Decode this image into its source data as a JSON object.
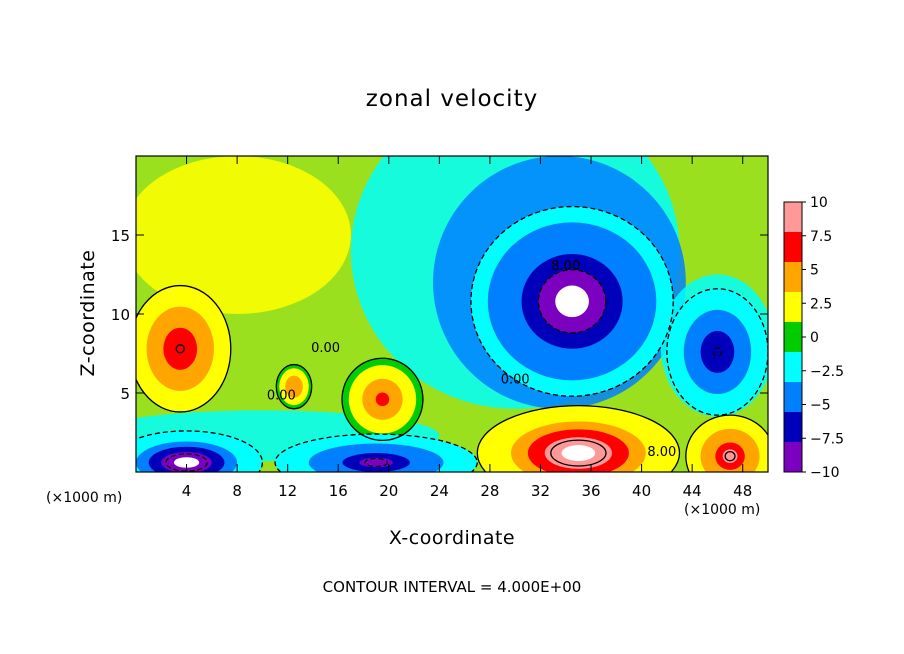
{
  "chart_data": {
    "type": "heatmap",
    "title": "zonal velocity",
    "xlabel": "X-coordinate",
    "ylabel": "Z-coordinate",
    "x_unit_label": "(×1000 m)",
    "footer": "CONTOUR INTERVAL = 4.000E+00",
    "xlim": [
      0,
      50
    ],
    "ylim": [
      0,
      20
    ],
    "x_ticks": [
      4,
      8,
      12,
      16,
      20,
      24,
      28,
      32,
      36,
      40,
      44,
      48
    ],
    "x_tick_labels": [
      "4",
      "8",
      "12",
      "16",
      "20",
      "24",
      "28",
      "32",
      "36",
      "40",
      "44",
      "48"
    ],
    "y_ticks": [
      5,
      10,
      15
    ],
    "y_tick_labels": [
      "5",
      "10",
      "15"
    ],
    "colorbar": {
      "range": [
        -10,
        10
      ],
      "ticks": [
        10,
        7.5,
        5,
        2.5,
        0,
        -2.5,
        -5,
        -7.5,
        -10
      ],
      "tick_labels": [
        "10",
        "7.5",
        "5",
        "2.5",
        "0",
        "−2.5",
        "−5",
        "−7.5",
        "−10"
      ],
      "colors": [
        "#ff9999",
        "#ff0000",
        "#ffa500",
        "#ffff00",
        "#00cc00",
        "#00ffff",
        "#0080ff",
        "#0000bb",
        "#7b00c0"
      ]
    },
    "contour_labels": [
      {
        "text": "8.00",
        "x": 34,
        "y": 12.8
      },
      {
        "text": "0.00",
        "x": 30,
        "y": 5.6
      },
      {
        "text": "8.00",
        "x": 41.6,
        "y": 1.0
      },
      {
        "text": "0.00",
        "x": 11.5,
        "y": 4.6
      },
      {
        "text": "0.00",
        "x": 15,
        "y": 7.6
      }
    ],
    "features": [
      {
        "sign": "positive",
        "x": 3.5,
        "y": 7.8,
        "peak": 8,
        "rx": 4,
        "ry": 4
      },
      {
        "sign": "positive",
        "x": 19.5,
        "y": 4.6,
        "peak": 7,
        "rx": 3.2,
        "ry": 2.6
      },
      {
        "sign": "positive",
        "x": 12.5,
        "y": 5.4,
        "peak": 6,
        "rx": 1.4,
        "ry": 1.4
      },
      {
        "sign": "negative",
        "x": 34.5,
        "y": 10.8,
        "peak": -12,
        "rx": 8,
        "ry": 6
      },
      {
        "sign": "negative",
        "x": 46,
        "y": 7.6,
        "peak": -8,
        "rx": 4,
        "ry": 4
      },
      {
        "sign": "positive",
        "x": 35,
        "y": 1.2,
        "peak": 11,
        "rx": 8,
        "ry": 3
      },
      {
        "sign": "positive",
        "x": 47,
        "y": 1.0,
        "peak": 9,
        "rx": 3.5,
        "ry": 2.6
      },
      {
        "sign": "negative",
        "x": 4,
        "y": 0.6,
        "peak": -11,
        "rx": 6,
        "ry": 2
      },
      {
        "sign": "negative",
        "x": 19,
        "y": 0.6,
        "peak": -9,
        "rx": 8,
        "ry": 1.8
      }
    ]
  }
}
